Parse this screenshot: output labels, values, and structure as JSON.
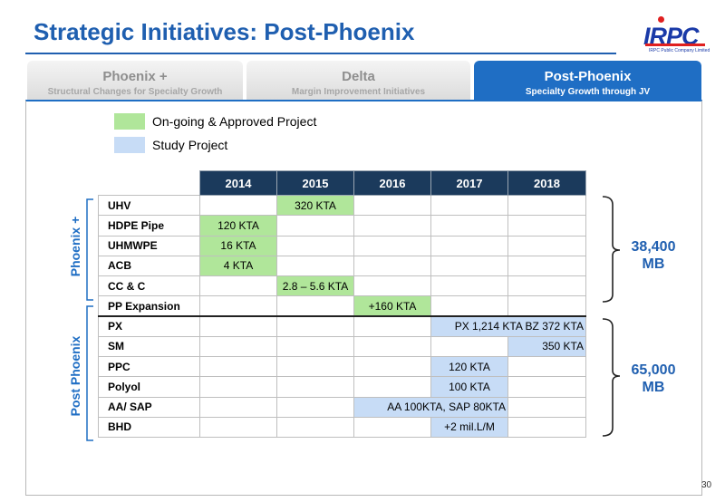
{
  "title": "Strategic Initiatives: Post-Phoenix",
  "logo": {
    "text": "IRPC",
    "subtext": "IRPC Public Company Limited"
  },
  "tabs": [
    {
      "title": "Phoenix +",
      "subtitle": "Structural Changes for Specialty Growth",
      "active": false
    },
    {
      "title": "Delta",
      "subtitle": "Margin Improvement Initiatives",
      "active": false
    },
    {
      "title": "Post-Phoenix",
      "subtitle": "Specialty Growth  through JV",
      "active": true
    }
  ],
  "legend": [
    {
      "label": "On-going & Approved Project",
      "color": "#b0e69a"
    },
    {
      "label": "Study Project",
      "color": "#c7dcf6"
    }
  ],
  "colors": {
    "accent": "#1f5fb0",
    "header_fill": "#1b3a5c",
    "ongoing": "#b0e69a",
    "study": "#c7dcf6"
  },
  "years": [
    "2014",
    "2015",
    "2016",
    "2017",
    "2018"
  ],
  "rows": [
    {
      "name": "UHV",
      "cells": [
        {
          "span": 1,
          "text": "",
          "fill": ""
        },
        {
          "span": 1,
          "text": "320 KTA",
          "fill": "g"
        },
        {
          "span": 1,
          "text": "",
          "fill": ""
        },
        {
          "span": 1,
          "text": "",
          "fill": ""
        },
        {
          "span": 1,
          "text": "",
          "fill": ""
        }
      ]
    },
    {
      "name": "HDPE Pipe",
      "cells": [
        {
          "span": 1,
          "text": "120 KTA",
          "fill": "g"
        },
        {
          "span": 1,
          "text": "",
          "fill": ""
        },
        {
          "span": 1,
          "text": "",
          "fill": ""
        },
        {
          "span": 1,
          "text": "",
          "fill": ""
        },
        {
          "span": 1,
          "text": "",
          "fill": ""
        }
      ]
    },
    {
      "name": "UHMWPE",
      "cells": [
        {
          "span": 1,
          "text": "16 KTA",
          "fill": "g"
        },
        {
          "span": 1,
          "text": "",
          "fill": ""
        },
        {
          "span": 1,
          "text": "",
          "fill": ""
        },
        {
          "span": 1,
          "text": "",
          "fill": ""
        },
        {
          "span": 1,
          "text": "",
          "fill": ""
        }
      ]
    },
    {
      "name": "ACB",
      "cells": [
        {
          "span": 1,
          "text": "4 KTA",
          "fill": "g"
        },
        {
          "span": 1,
          "text": "",
          "fill": ""
        },
        {
          "span": 1,
          "text": "",
          "fill": ""
        },
        {
          "span": 1,
          "text": "",
          "fill": ""
        },
        {
          "span": 1,
          "text": "",
          "fill": ""
        }
      ]
    },
    {
      "name": "CC & C",
      "cells": [
        {
          "span": 1,
          "text": "",
          "fill": ""
        },
        {
          "span": 1,
          "text": "2.8 – 5.6 KTA",
          "fill": "g"
        },
        {
          "span": 1,
          "text": "",
          "fill": ""
        },
        {
          "span": 1,
          "text": "",
          "fill": ""
        },
        {
          "span": 1,
          "text": "",
          "fill": ""
        }
      ]
    },
    {
      "name": "PP Expansion",
      "cells": [
        {
          "span": 1,
          "text": "",
          "fill": ""
        },
        {
          "span": 1,
          "text": "",
          "fill": ""
        },
        {
          "span": 1,
          "text": "+160 KTA",
          "fill": "g"
        },
        {
          "span": 1,
          "text": "",
          "fill": ""
        },
        {
          "span": 1,
          "text": "",
          "fill": ""
        }
      ]
    },
    {
      "name": "PX",
      "cells": [
        {
          "span": 1,
          "text": "",
          "fill": ""
        },
        {
          "span": 1,
          "text": "",
          "fill": ""
        },
        {
          "span": 1,
          "text": "",
          "fill": ""
        },
        {
          "span": 2,
          "text": "PX 1,214 KTA BZ 372 KTA",
          "fill": "b"
        }
      ]
    },
    {
      "name": "SM",
      "cells": [
        {
          "span": 1,
          "text": "",
          "fill": ""
        },
        {
          "span": 1,
          "text": "",
          "fill": ""
        },
        {
          "span": 1,
          "text": "",
          "fill": ""
        },
        {
          "span": 1,
          "text": "",
          "fill": ""
        },
        {
          "span": 1,
          "text": "350 KTA",
          "fill": "b"
        }
      ]
    },
    {
      "name": "PPC",
      "cells": [
        {
          "span": 1,
          "text": "",
          "fill": ""
        },
        {
          "span": 1,
          "text": "",
          "fill": ""
        },
        {
          "span": 1,
          "text": "",
          "fill": ""
        },
        {
          "span": 1,
          "text": "120 KTA",
          "fill": "b"
        },
        {
          "span": 1,
          "text": "",
          "fill": ""
        }
      ]
    },
    {
      "name": "Polyol",
      "cells": [
        {
          "span": 1,
          "text": "",
          "fill": ""
        },
        {
          "span": 1,
          "text": "",
          "fill": ""
        },
        {
          "span": 1,
          "text": "",
          "fill": ""
        },
        {
          "span": 1,
          "text": "100 KTA",
          "fill": "b"
        },
        {
          "span": 1,
          "text": "",
          "fill": ""
        }
      ]
    },
    {
      "name": "AA/ SAP",
      "cells": [
        {
          "span": 1,
          "text": "",
          "fill": ""
        },
        {
          "span": 1,
          "text": "",
          "fill": ""
        },
        {
          "span": 2,
          "text": "AA 100KTA, SAP 80KTA",
          "fill": "b"
        },
        {
          "span": 1,
          "text": "",
          "fill": ""
        }
      ]
    },
    {
      "name": "BHD",
      "cells": [
        {
          "span": 1,
          "text": "",
          "fill": ""
        },
        {
          "span": 1,
          "text": "",
          "fill": ""
        },
        {
          "span": 1,
          "text": "",
          "fill": ""
        },
        {
          "span": 1,
          "text": "+2 mil.L/M",
          "fill": "b"
        },
        {
          "span": 1,
          "text": "",
          "fill": ""
        }
      ]
    }
  ],
  "groups": [
    {
      "label": "Phoenix +",
      "total": "38,400 MB"
    },
    {
      "label": "Post Phoenix",
      "total": "65,000 MB"
    }
  ],
  "page_number": "30"
}
